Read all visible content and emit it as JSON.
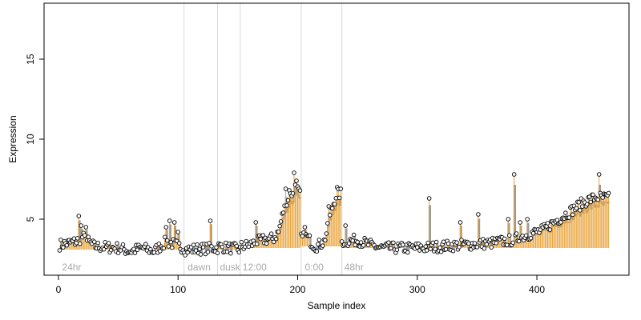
{
  "chart_data": {
    "type": "scatter",
    "title": "",
    "xlabel": "Sample index",
    "ylabel": "Expression",
    "xlim": [
      -12,
      477
    ],
    "ylim": [
      1.5,
      18.5
    ],
    "x_ticks": [
      0,
      100,
      200,
      300,
      400
    ],
    "y_ticks": [
      5,
      10,
      15
    ],
    "grid": false,
    "legend": "none",
    "colors": {
      "point_fill": "#ffffff",
      "point_stroke": "#000000",
      "fitted_step": "#7b9fd6",
      "residual_up": "#e8a33a",
      "residual_down": "#7b9fd6",
      "separator": "#d9d9d9",
      "segment_label": "#a8a8a8"
    },
    "separators": [
      105,
      133,
      152,
      203,
      237
    ],
    "segment_labels": [
      {
        "text": "24hr",
        "x": 3
      },
      {
        "text": "dawn",
        "x": 108
      },
      {
        "text": "dusk",
        "x": 135
      },
      {
        "text": "12:00",
        "x": 154
      },
      {
        "text": "0:00",
        "x": 206
      },
      {
        "text": "48hr",
        "x": 239
      }
    ],
    "segments": [
      {
        "range": [
          1,
          105
        ],
        "level": 3.1,
        "anchors": [
          [
            1,
            3.4
          ],
          [
            15,
            3.6
          ],
          [
            20,
            3.9
          ],
          [
            30,
            3.3
          ],
          [
            50,
            3.2
          ],
          [
            60,
            3.0
          ],
          [
            70,
            3.2
          ],
          [
            80,
            3.0
          ],
          [
            90,
            3.6
          ],
          [
            98,
            3.4
          ],
          [
            105,
            3.2
          ]
        ],
        "spikes": [
          [
            17,
            5.2
          ],
          [
            19,
            4.6
          ],
          [
            23,
            4.5
          ],
          [
            90,
            4.5
          ],
          [
            93,
            4.9
          ],
          [
            97,
            4.8
          ],
          [
            100,
            4.2
          ]
        ]
      },
      {
        "range": [
          106,
          133
        ],
        "level": 3.2,
        "anchors": [
          [
            106,
            3.1
          ],
          [
            133,
            3.2
          ]
        ],
        "spikes": [
          [
            127,
            4.9
          ]
        ]
      },
      {
        "range": [
          134,
          152
        ],
        "level": 3.1,
        "anchors": [
          [
            134,
            3.3
          ],
          [
            152,
            3.1
          ]
        ],
        "spikes": []
      },
      {
        "range": [
          153,
          202
        ],
        "level": 3.2,
        "anchors": [
          [
            153,
            3.3
          ],
          [
            160,
            3.4
          ],
          [
            170,
            3.7
          ],
          [
            180,
            3.8
          ],
          [
            184,
            4.2
          ],
          [
            188,
            5.5
          ],
          [
            191,
            6.0
          ],
          [
            195,
            6.6
          ],
          [
            198,
            7.2
          ],
          [
            202,
            6.5
          ]
        ],
        "spikes": [
          [
            165,
            4.8
          ],
          [
            190,
            6.9
          ],
          [
            193,
            6.8
          ],
          [
            197,
            7.9
          ],
          [
            199,
            7.4
          ]
        ]
      },
      {
        "range": [
          203,
          236
        ],
        "level": 3.3,
        "anchors": [
          [
            203,
            3.8
          ],
          [
            208,
            3.9
          ],
          [
            212,
            3.5
          ],
          [
            215,
            3.3
          ],
          [
            218,
            3.4
          ],
          [
            222,
            3.6
          ],
          [
            225,
            4.4
          ],
          [
            228,
            5.5
          ],
          [
            232,
            6.5
          ],
          [
            236,
            6.6
          ]
        ],
        "spikes": [
          [
            206,
            4.5
          ],
          [
            226,
            5.8
          ],
          [
            233,
            7.0
          ]
        ]
      },
      {
        "range": [
          237,
          460
        ],
        "level": 3.2,
        "anchors": [
          [
            237,
            3.6
          ],
          [
            250,
            3.7
          ],
          [
            260,
            3.4
          ],
          [
            270,
            3.2
          ],
          [
            300,
            3.2
          ],
          [
            320,
            3.3
          ],
          [
            360,
            3.5
          ],
          [
            380,
            3.7
          ],
          [
            395,
            4.1
          ],
          [
            405,
            4.3
          ],
          [
            410,
            4.6
          ],
          [
            420,
            5.1
          ],
          [
            430,
            5.6
          ],
          [
            440,
            6.1
          ],
          [
            450,
            6.4
          ],
          [
            460,
            6.3
          ]
        ],
        "spikes": [
          [
            240,
            4.6
          ],
          [
            310,
            6.3
          ],
          [
            336,
            4.8
          ],
          [
            351,
            5.3
          ],
          [
            376,
            5.0
          ],
          [
            381,
            7.8
          ],
          [
            386,
            4.8
          ],
          [
            392,
            5.0
          ],
          [
            452,
            7.8
          ]
        ]
      }
    ]
  }
}
